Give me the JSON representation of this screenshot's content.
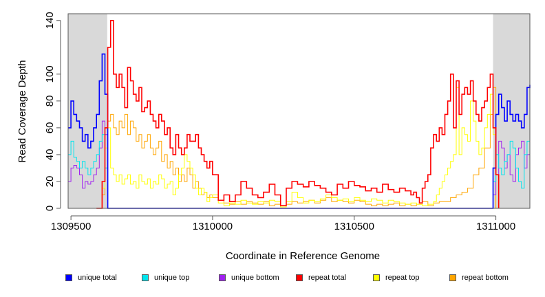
{
  "chart_data": {
    "type": "line",
    "title": "",
    "xlabel": "Coordinate in Reference Genome",
    "ylabel": "Read Coverage Depth",
    "xlim": [
      1309490,
      1311120
    ],
    "ylim": [
      0,
      145
    ],
    "xticks": [
      1309500,
      1310000,
      1310500,
      1311000
    ],
    "xtick_labels": [
      "1309500",
      "1310000",
      "1310500",
      "1311000"
    ],
    "yticks": [
      0,
      20,
      40,
      60,
      80,
      100,
      140
    ],
    "ytick_labels": [
      "0",
      "20",
      "40",
      "60",
      "80",
      "100",
      "140"
    ],
    "shaded_regions": [
      [
        1309490,
        1309628
      ],
      [
        1310990,
        1311120
      ]
    ],
    "shade_color": "#d9d9d9",
    "series": [
      {
        "name": "unique total",
        "color": "#0000ff",
        "x": [
          1309490,
          1309500,
          1309510,
          1309520,
          1309530,
          1309540,
          1309550,
          1309560,
          1309570,
          1309580,
          1309590,
          1309600,
          1309610,
          1309620,
          1309630,
          1310980,
          1310990,
          1311000,
          1311010,
          1311020,
          1311030,
          1311040,
          1311050,
          1311060,
          1311070,
          1311080,
          1311090,
          1311100,
          1311110,
          1311120
        ],
        "y": [
          60,
          80,
          70,
          65,
          60,
          50,
          55,
          45,
          50,
          60,
          70,
          95,
          115,
          85,
          0,
          0,
          30,
          70,
          85,
          75,
          65,
          80,
          70,
          65,
          70,
          65,
          60,
          70,
          90,
          92
        ]
      },
      {
        "name": "unique top",
        "color": "#00e5ee",
        "x": [
          1309490,
          1309500,
          1309510,
          1309520,
          1309530,
          1309540,
          1309550,
          1309560,
          1309570,
          1309580,
          1309590,
          1309600,
          1309610,
          1309620,
          1309630,
          1310980,
          1310990,
          1311000,
          1311010,
          1311020,
          1311030,
          1311040,
          1311050,
          1311060,
          1311070,
          1311080,
          1311090,
          1311100,
          1311110,
          1311120
        ],
        "y": [
          40,
          50,
          38,
          35,
          30,
          35,
          30,
          25,
          30,
          35,
          40,
          50,
          55,
          30,
          0,
          0,
          20,
          40,
          30,
          25,
          35,
          40,
          50,
          45,
          30,
          20,
          15,
          40,
          50,
          40
        ]
      },
      {
        "name": "unique bottom",
        "color": "#a020f0",
        "x": [
          1309490,
          1309500,
          1309510,
          1309520,
          1309530,
          1309540,
          1309550,
          1309560,
          1309570,
          1309580,
          1309590,
          1309600,
          1309610,
          1309620,
          1309630,
          1310980,
          1310990,
          1311000,
          1311010,
          1311020,
          1311030,
          1311040,
          1311050,
          1311060,
          1311070,
          1311080,
          1311090,
          1311100,
          1311110,
          1311120
        ],
        "y": [
          20,
          30,
          32,
          30,
          25,
          15,
          20,
          18,
          20,
          25,
          30,
          45,
          65,
          55,
          0,
          0,
          10,
          25,
          50,
          45,
          30,
          40,
          25,
          20,
          40,
          45,
          50,
          30,
          40,
          52
        ]
      },
      {
        "name": "repeat total",
        "color": "#ff0000",
        "x": [
          1309590,
          1309600,
          1309610,
          1309620,
          1309630,
          1309640,
          1309650,
          1309660,
          1309670,
          1309680,
          1309690,
          1309700,
          1309710,
          1309720,
          1309730,
          1309740,
          1309750,
          1309760,
          1309770,
          1309780,
          1309790,
          1309800,
          1309810,
          1309820,
          1309830,
          1309840,
          1309850,
          1309860,
          1309870,
          1309880,
          1309890,
          1309900,
          1309910,
          1309920,
          1309930,
          1309940,
          1309950,
          1309960,
          1309970,
          1309980,
          1309990,
          1310000,
          1310020,
          1310040,
          1310060,
          1310080,
          1310100,
          1310120,
          1310140,
          1310160,
          1310180,
          1310200,
          1310220,
          1310240,
          1310260,
          1310280,
          1310300,
          1310320,
          1310340,
          1310360,
          1310380,
          1310400,
          1310420,
          1310440,
          1310460,
          1310480,
          1310500,
          1310520,
          1310540,
          1310560,
          1310580,
          1310600,
          1310620,
          1310640,
          1310660,
          1310680,
          1310700,
          1310710,
          1310720,
          1310730,
          1310740,
          1310750,
          1310760,
          1310770,
          1310780,
          1310790,
          1310800,
          1310810,
          1310820,
          1310830,
          1310840,
          1310850,
          1310860,
          1310870,
          1310880,
          1310890,
          1310900,
          1310910,
          1310920,
          1310930,
          1310940,
          1310950,
          1310960,
          1310970,
          1310980,
          1310990,
          1311000,
          1311010
        ],
        "y": [
          0,
          0,
          20,
          60,
          120,
          140,
          100,
          90,
          100,
          90,
          75,
          105,
          95,
          85,
          80,
          90,
          72,
          75,
          80,
          70,
          65,
          60,
          70,
          65,
          55,
          60,
          45,
          40,
          55,
          45,
          40,
          45,
          55,
          50,
          50,
          55,
          45,
          40,
          35,
          30,
          35,
          25,
          6,
          10,
          5,
          10,
          20,
          15,
          10,
          8,
          12,
          18,
          10,
          2,
          15,
          20,
          18,
          16,
          20,
          17,
          15,
          12,
          10,
          18,
          15,
          20,
          17,
          16,
          13,
          15,
          12,
          18,
          14,
          12,
          15,
          13,
          10,
          12,
          8,
          4,
          15,
          20,
          25,
          45,
          55,
          50,
          60,
          55,
          70,
          80,
          100,
          60,
          95,
          70,
          85,
          90,
          85,
          95,
          80,
          70,
          65,
          75,
          80,
          90,
          100,
          60,
          25,
          0
        ]
      },
      {
        "name": "repeat top",
        "color": "#ffff00",
        "x": [
          1309600,
          1309610,
          1309620,
          1309630,
          1309640,
          1309650,
          1309660,
          1309670,
          1309680,
          1309690,
          1309700,
          1309710,
          1309720,
          1309730,
          1309740,
          1309750,
          1309760,
          1309770,
          1309780,
          1309790,
          1309800,
          1309810,
          1309820,
          1309830,
          1309840,
          1309850,
          1309860,
          1309870,
          1309880,
          1309890,
          1309900,
          1309910,
          1309920,
          1309930,
          1309940,
          1309950,
          1309960,
          1309970,
          1309980,
          1309990,
          1310000,
          1310020,
          1310040,
          1310060,
          1310080,
          1310100,
          1310120,
          1310140,
          1310160,
          1310180,
          1310200,
          1310220,
          1310240,
          1310260,
          1310280,
          1310300,
          1310320,
          1310340,
          1310360,
          1310380,
          1310400,
          1310420,
          1310440,
          1310460,
          1310480,
          1310500,
          1310520,
          1310540,
          1310560,
          1310580,
          1310600,
          1310620,
          1310640,
          1310660,
          1310680,
          1310700,
          1310720,
          1310740,
          1310760,
          1310780,
          1310790,
          1310800,
          1310810,
          1310820,
          1310830,
          1310840,
          1310850,
          1310860,
          1310870,
          1310880,
          1310890,
          1310900,
          1310910,
          1310920,
          1310930,
          1310940,
          1310950,
          1310960,
          1310970,
          1310980,
          1310990,
          1311000
        ],
        "y": [
          0,
          15,
          45,
          60,
          30,
          25,
          20,
          25,
          18,
          22,
          25,
          18,
          20,
          15,
          25,
          20,
          18,
          22,
          15,
          20,
          18,
          25,
          22,
          15,
          18,
          20,
          10,
          15,
          25,
          30,
          40,
          35,
          30,
          25,
          15,
          10,
          15,
          12,
          5,
          8,
          10,
          4,
          2,
          4,
          3,
          6,
          4,
          3,
          5,
          4,
          6,
          5,
          1,
          5,
          12,
          8,
          4,
          6,
          5,
          7,
          10,
          8,
          6,
          7,
          5,
          8,
          6,
          5,
          7,
          6,
          4,
          6,
          5,
          4,
          3,
          4,
          3,
          2,
          3,
          5,
          10,
          15,
          20,
          25,
          30,
          35,
          40,
          90,
          40,
          60,
          55,
          50,
          80,
          65,
          50,
          40,
          45,
          60,
          70,
          85,
          55,
          15
        ]
      },
      {
        "name": "repeat bottom",
        "color": "#ffa500",
        "x": [
          1309600,
          1309610,
          1309620,
          1309630,
          1309640,
          1309650,
          1309660,
          1309670,
          1309680,
          1309690,
          1309700,
          1309710,
          1309720,
          1309730,
          1309740,
          1309750,
          1309760,
          1309770,
          1309780,
          1309790,
          1309800,
          1309810,
          1309820,
          1309830,
          1309840,
          1309850,
          1309860,
          1309870,
          1309880,
          1309890,
          1309900,
          1309910,
          1309920,
          1309930,
          1309940,
          1309950,
          1309960,
          1309970,
          1309980,
          1309990,
          1310000,
          1310020,
          1310040,
          1310060,
          1310080,
          1310100,
          1310120,
          1310140,
          1310160,
          1310180,
          1310200,
          1310220,
          1310240,
          1310260,
          1310280,
          1310300,
          1310320,
          1310340,
          1310360,
          1310380,
          1310400,
          1310420,
          1310440,
          1310460,
          1310480,
          1310500,
          1310520,
          1310540,
          1310560,
          1310580,
          1310600,
          1310620,
          1310640,
          1310660,
          1310680,
          1310700,
          1310720,
          1310740,
          1310760,
          1310780,
          1310800,
          1310820,
          1310840,
          1310860,
          1310880,
          1310900,
          1310920,
          1310940,
          1310960,
          1310980,
          1310990,
          1311000,
          1311120
        ],
        "y": [
          0,
          10,
          30,
          65,
          70,
          60,
          55,
          65,
          60,
          70,
          55,
          65,
          60,
          50,
          55,
          45,
          50,
          55,
          45,
          40,
          45,
          50,
          35,
          40,
          30,
          35,
          25,
          30,
          20,
          25,
          20,
          30,
          25,
          15,
          20,
          15,
          10,
          12,
          8,
          10,
          8,
          6,
          4,
          3,
          5,
          3,
          5,
          4,
          3,
          5,
          2,
          3,
          1,
          3,
          5,
          4,
          5,
          6,
          4,
          6,
          8,
          5,
          6,
          5,
          4,
          6,
          5,
          3,
          2,
          3,
          2,
          3,
          4,
          2,
          3,
          2,
          3,
          5,
          2,
          4,
          5,
          5,
          8,
          10,
          12,
          15,
          25,
          30,
          45,
          70,
          90,
          0,
          0
        ]
      }
    ]
  }
}
